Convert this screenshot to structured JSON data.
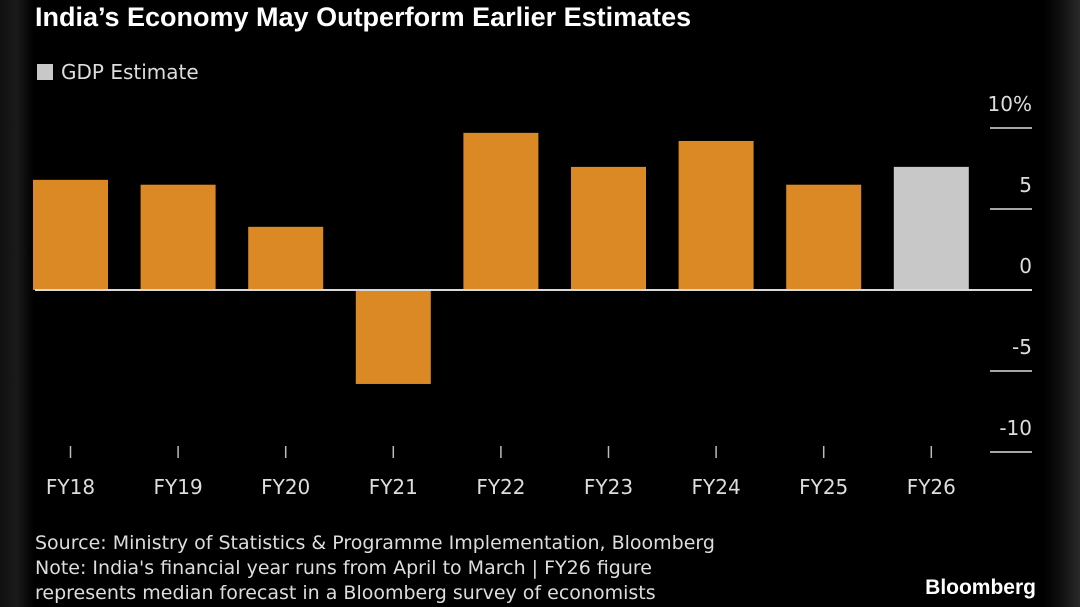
{
  "title": "India’s Economy May Outperform Earlier Estimates",
  "legend": {
    "label": "GDP Estimate",
    "color": "#c8c8c8"
  },
  "colors": {
    "actual": "#db8924",
    "estimate": "#c8c8c8",
    "background": "#000000",
    "axis": "#d9d9d9"
  },
  "chart_data": {
    "type": "bar",
    "title": "India’s Economy May Outperform Earlier Estimates",
    "categories": [
      "FY18",
      "FY19",
      "FY20",
      "FY21",
      "FY22",
      "FY23",
      "FY24",
      "FY25",
      "FY26"
    ],
    "values": [
      6.8,
      6.5,
      3.9,
      -5.8,
      9.7,
      7.6,
      9.2,
      6.5,
      7.6
    ],
    "estimate_flags": [
      false,
      false,
      false,
      false,
      false,
      false,
      false,
      false,
      true
    ],
    "series": [
      {
        "name": "GDP Estimate",
        "note": "FY26 only"
      }
    ],
    "ylim": [
      -10,
      10
    ],
    "yticks": [
      10,
      5,
      0,
      -5,
      -10
    ],
    "ytick_labels": [
      "10%",
      "5",
      "0",
      "-5",
      "-10"
    ],
    "yaxis_position": "right",
    "grid": false,
    "legend_placement": "top-left"
  },
  "footer": {
    "source": "Source: Ministry of Statistics & Programme Implementation, Bloomberg",
    "note1": "Note: India's financial year runs from April to March | FY26 figure",
    "note2": "represents median forecast in a Bloomberg survey of economists"
  },
  "logo": "Bloomberg"
}
